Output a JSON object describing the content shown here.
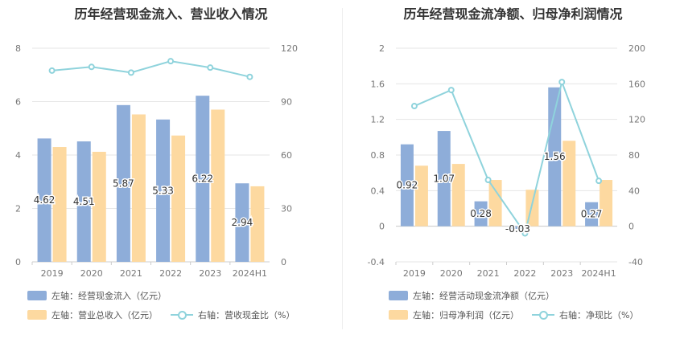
{
  "chart_data": [
    {
      "type": "bar",
      "title": "历年经营现金流入、营业收入情况",
      "categories": [
        "2019",
        "2020",
        "2021",
        "2022",
        "2023",
        "2024H1"
      ],
      "y_left": {
        "ticks": [
          "0",
          "2",
          "4",
          "6",
          "8"
        ],
        "min": 0,
        "max": 8
      },
      "y_right": {
        "ticks": [
          "0",
          "30",
          "60",
          "90",
          "120"
        ],
        "min": 0,
        "max": 120
      },
      "series": [
        {
          "name": "左轴：经营现金流入（亿元）",
          "kind": "bar",
          "axis": "left",
          "color": "#8eadd9",
          "values": [
            4.62,
            4.51,
            5.87,
            5.33,
            6.22,
            2.94
          ],
          "labels": [
            "4.62",
            "4.51",
            "5.87",
            "5.33",
            "6.22",
            "2.94"
          ]
        },
        {
          "name": "左轴：营业总收入（亿元）",
          "kind": "bar",
          "axis": "left",
          "color": "#fdd9a0",
          "values": [
            4.3,
            4.12,
            5.52,
            4.73,
            5.7,
            2.83
          ]
        },
        {
          "name": "右轴：营收现金比（%）",
          "kind": "line",
          "axis": "right",
          "color": "#8fd3dc",
          "values": [
            107.4,
            109.5,
            106.3,
            112.7,
            109.1,
            103.9
          ]
        }
      ],
      "grid": true
    },
    {
      "type": "bar",
      "title": "历年经营现金流净额、归母净利润情况",
      "categories": [
        "2019",
        "2020",
        "2021",
        "2022",
        "2023",
        "2024H1"
      ],
      "y_left": {
        "ticks": [
          "-0.4",
          "0",
          "0.4",
          "0.8",
          "1.2",
          "1.6",
          "2"
        ],
        "min": -0.4,
        "max": 2
      },
      "y_right": {
        "ticks": [
          "-40",
          "0",
          "40",
          "80",
          "120",
          "160",
          "200"
        ],
        "min": -40,
        "max": 200
      },
      "series": [
        {
          "name": "左轴：经营活动现金流净额（亿元）",
          "kind": "bar",
          "axis": "left",
          "color": "#8eadd9",
          "values": [
            0.92,
            1.07,
            0.28,
            -0.03,
            1.56,
            0.27
          ],
          "labels": [
            "0.92",
            "1.07",
            "0.28",
            "-0.03",
            "1.56",
            "0.27"
          ]
        },
        {
          "name": "左轴：归母净利润（亿元）",
          "kind": "bar",
          "axis": "left",
          "color": "#fdd9a0",
          "values": [
            0.68,
            0.7,
            0.52,
            0.41,
            0.96,
            0.52
          ]
        },
        {
          "name": "右轴：净现比（%）",
          "kind": "line",
          "axis": "right",
          "color": "#8fd3dc",
          "values": [
            135,
            153,
            52,
            -8,
            162,
            51
          ]
        }
      ],
      "grid": true
    }
  ]
}
